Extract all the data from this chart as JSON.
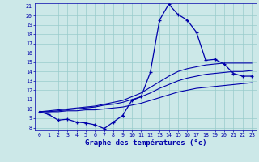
{
  "title": "Graphe des températures (°c)",
  "bg_color": "#cce8e8",
  "grid_color": "#99cccc",
  "line_color": "#0000aa",
  "x_hours": [
    0,
    1,
    2,
    3,
    4,
    5,
    6,
    7,
    8,
    9,
    10,
    11,
    12,
    13,
    14,
    15,
    16,
    17,
    18,
    19,
    20,
    21,
    22,
    23
  ],
  "temp_actual": [
    9.7,
    9.4,
    8.8,
    8.9,
    8.6,
    8.5,
    8.3,
    7.9,
    8.6,
    9.3,
    10.9,
    11.3,
    13.9,
    19.5,
    21.2,
    20.1,
    19.5,
    18.2,
    15.2,
    15.3,
    14.8,
    13.8,
    13.5,
    13.5
  ],
  "temp_line1": [
    9.7,
    9.7,
    9.7,
    9.8,
    9.8,
    9.9,
    9.9,
    10.0,
    10.1,
    10.2,
    10.4,
    10.6,
    10.9,
    11.2,
    11.5,
    11.8,
    12.0,
    12.2,
    12.3,
    12.4,
    12.5,
    12.6,
    12.7,
    12.8
  ],
  "temp_line2": [
    9.7,
    9.7,
    9.8,
    9.9,
    10.0,
    10.1,
    10.2,
    10.4,
    10.5,
    10.7,
    11.0,
    11.3,
    11.7,
    12.2,
    12.6,
    13.0,
    13.3,
    13.5,
    13.7,
    13.8,
    13.9,
    14.0,
    14.0,
    14.1
  ],
  "temp_line3": [
    9.7,
    9.8,
    9.9,
    10.0,
    10.1,
    10.2,
    10.3,
    10.5,
    10.7,
    10.9,
    11.3,
    11.7,
    12.3,
    12.9,
    13.5,
    14.0,
    14.3,
    14.5,
    14.7,
    14.8,
    14.9,
    14.9,
    14.9,
    14.9
  ],
  "ylim_min": 8,
  "ylim_max": 21,
  "yticks": [
    8,
    9,
    10,
    11,
    12,
    13,
    14,
    15,
    16,
    17,
    18,
    19,
    20,
    21
  ]
}
